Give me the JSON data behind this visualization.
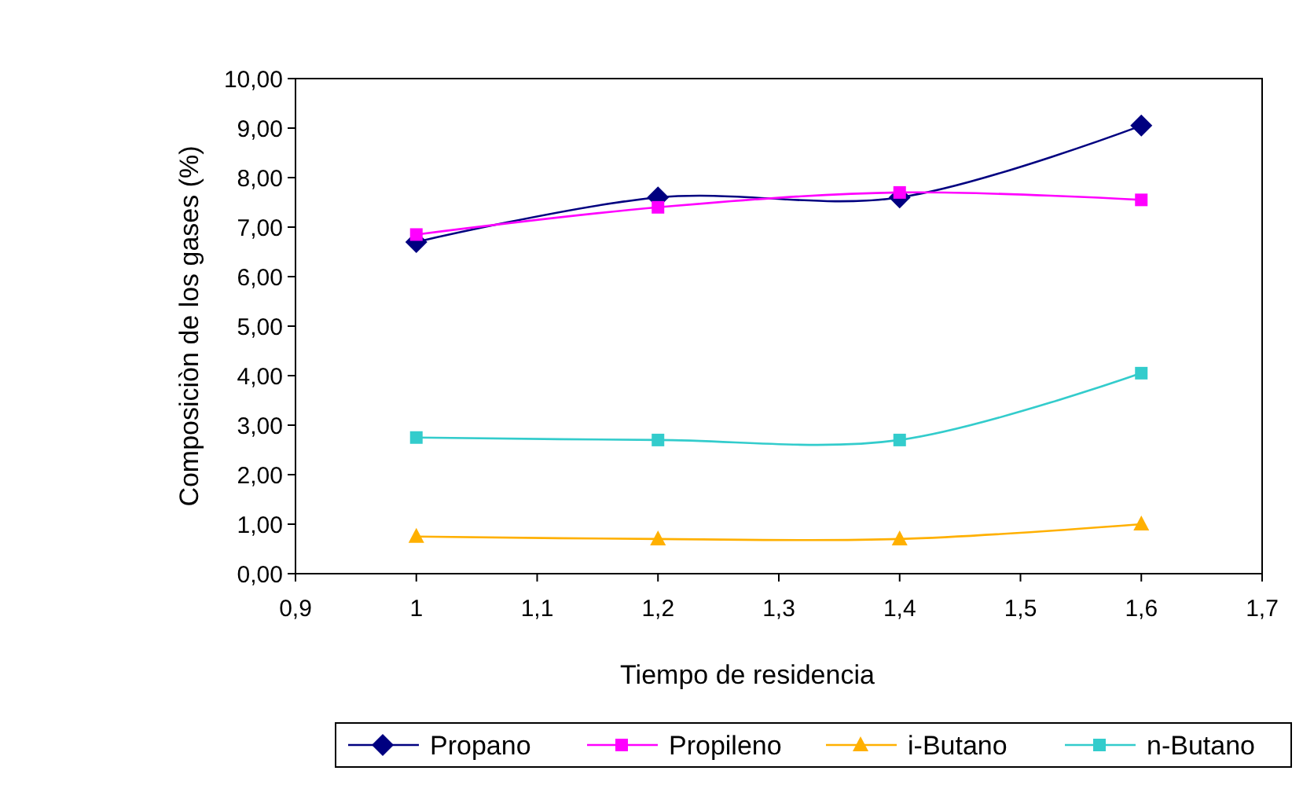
{
  "chart_data": {
    "type": "line",
    "xlabel": "Tiempo de residencia",
    "ylabel": "Composiciòn de los gases (%)",
    "x": [
      1,
      1.2,
      1.4,
      1.6
    ],
    "series": [
      {
        "name": "Propano",
        "color": "#000080",
        "marker": "diamond",
        "values": [
          6.7,
          7.6,
          7.6,
          9.05
        ]
      },
      {
        "name": "Propileno",
        "color": "#ff00ff",
        "marker": "square",
        "values": [
          6.85,
          7.4,
          7.7,
          7.55
        ]
      },
      {
        "name": "i-Butano",
        "color": "#ffb000",
        "marker": "triangle",
        "values": [
          0.75,
          0.7,
          0.7,
          1.0
        ]
      },
      {
        "name": "n-Butano",
        "color": "#33cccc",
        "marker": "square",
        "values": [
          2.75,
          2.7,
          2.7,
          4.05
        ]
      }
    ],
    "xlim": [
      0.9,
      1.7
    ],
    "xticks": [
      {
        "value": 0.9,
        "label": "0,9"
      },
      {
        "value": 1,
        "label": "1"
      },
      {
        "value": 1.1,
        "label": "1,1"
      },
      {
        "value": 1.2,
        "label": "1,2"
      },
      {
        "value": 1.3,
        "label": "1,3"
      },
      {
        "value": 1.4,
        "label": "1,4"
      },
      {
        "value": 1.5,
        "label": "1,5"
      },
      {
        "value": 1.6,
        "label": "1,6"
      },
      {
        "value": 1.7,
        "label": "1,7"
      }
    ],
    "ylim": [
      0,
      10
    ],
    "yticks": [
      {
        "value": 0,
        "label": "0,00"
      },
      {
        "value": 1,
        "label": "1,00"
      },
      {
        "value": 2,
        "label": "2,00"
      },
      {
        "value": 3,
        "label": "3,00"
      },
      {
        "value": 4,
        "label": "4,00"
      },
      {
        "value": 5,
        "label": "5,00"
      },
      {
        "value": 6,
        "label": "6,00"
      },
      {
        "value": 7,
        "label": "7,00"
      },
      {
        "value": 8,
        "label": "8,00"
      },
      {
        "value": 9,
        "label": "9,00"
      },
      {
        "value": 10,
        "label": "10,00"
      }
    ],
    "grid": false,
    "legend": "bottom",
    "line_style": "solid"
  }
}
